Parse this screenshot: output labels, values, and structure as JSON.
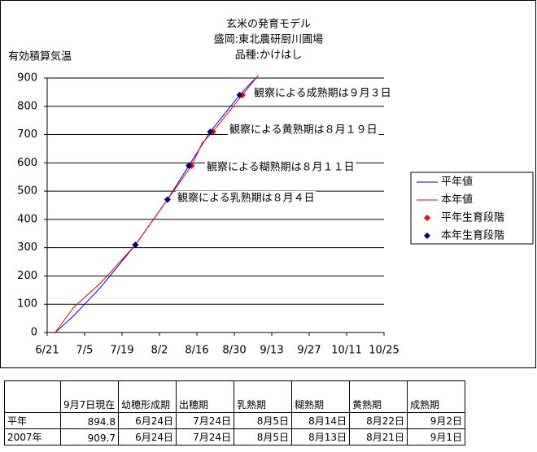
{
  "chart_data": {
    "type": "line",
    "title": [
      "玄米の発育モデル",
      "盛岡:東北農研厨川圃場",
      "品種:かけはし"
    ],
    "ylabel": "有効積算気温",
    "xlim": [
      0,
      126
    ],
    "ylim": [
      0,
      900
    ],
    "xticks": [
      {
        "value": 0,
        "label": "6/21"
      },
      {
        "value": 14,
        "label": "7/5"
      },
      {
        "value": 28,
        "label": "7/19"
      },
      {
        "value": 42,
        "label": "8/2"
      },
      {
        "value": 56,
        "label": "8/16"
      },
      {
        "value": 70,
        "label": "8/30"
      },
      {
        "value": 84,
        "label": "9/13"
      },
      {
        "value": 98,
        "label": "9/27"
      },
      {
        "value": 112,
        "label": "10/11"
      },
      {
        "value": 126,
        "label": "10/25"
      }
    ],
    "yticks": [
      0,
      100,
      200,
      300,
      400,
      500,
      600,
      700,
      800,
      900
    ],
    "grid": true,
    "series": [
      {
        "name": "平年値",
        "color": "#0000ff",
        "style": "line",
        "x": [
          3,
          10,
          20,
          33,
          45,
          53,
          61,
          72,
          78
        ],
        "values": [
          0,
          60,
          160,
          310,
          470,
          590,
          710,
          840,
          900
        ]
      },
      {
        "name": "本年値",
        "color": "#ff0000",
        "style": "line",
        "x": [
          3,
          10,
          20,
          33,
          45,
          54,
          58,
          62,
          73,
          79
        ],
        "values": [
          0,
          90,
          175,
          310,
          470,
          590,
          670,
          710,
          840,
          910
        ]
      },
      {
        "name": "平年生育段階",
        "color": "#ff0000",
        "style": "marker",
        "x": [
          33,
          45,
          54,
          62,
          73
        ],
        "values": [
          310,
          470,
          590,
          710,
          840
        ]
      },
      {
        "name": "本年生育段階",
        "color": "#000080",
        "style": "marker",
        "x": [
          33,
          45,
          53,
          61,
          72
        ],
        "values": [
          310,
          470,
          590,
          710,
          840
        ]
      }
    ],
    "annotations": [
      "観察による成熟期は９月３日",
      "観察による黄熟期は８月１９日",
      "観察による糊熟期は８月１１日",
      "観察による乳熟期は８月４日"
    ]
  },
  "table": {
    "rows": [
      [
        "",
        "9月7日現在",
        "幼穂形成期",
        "出穂期",
        "乳熟期",
        "糊熟期",
        "黄熟期",
        "成熟期"
      ],
      [
        "平年",
        "894.8",
        "6月24日",
        "7月24日",
        "8月5日",
        "8月14日",
        "8月22日",
        "9月2日"
      ],
      [
        "2007年",
        "909.7",
        "6月24日",
        "7月24日",
        "8月5日",
        "8月13日",
        "8月21日",
        "9月1日"
      ]
    ]
  }
}
